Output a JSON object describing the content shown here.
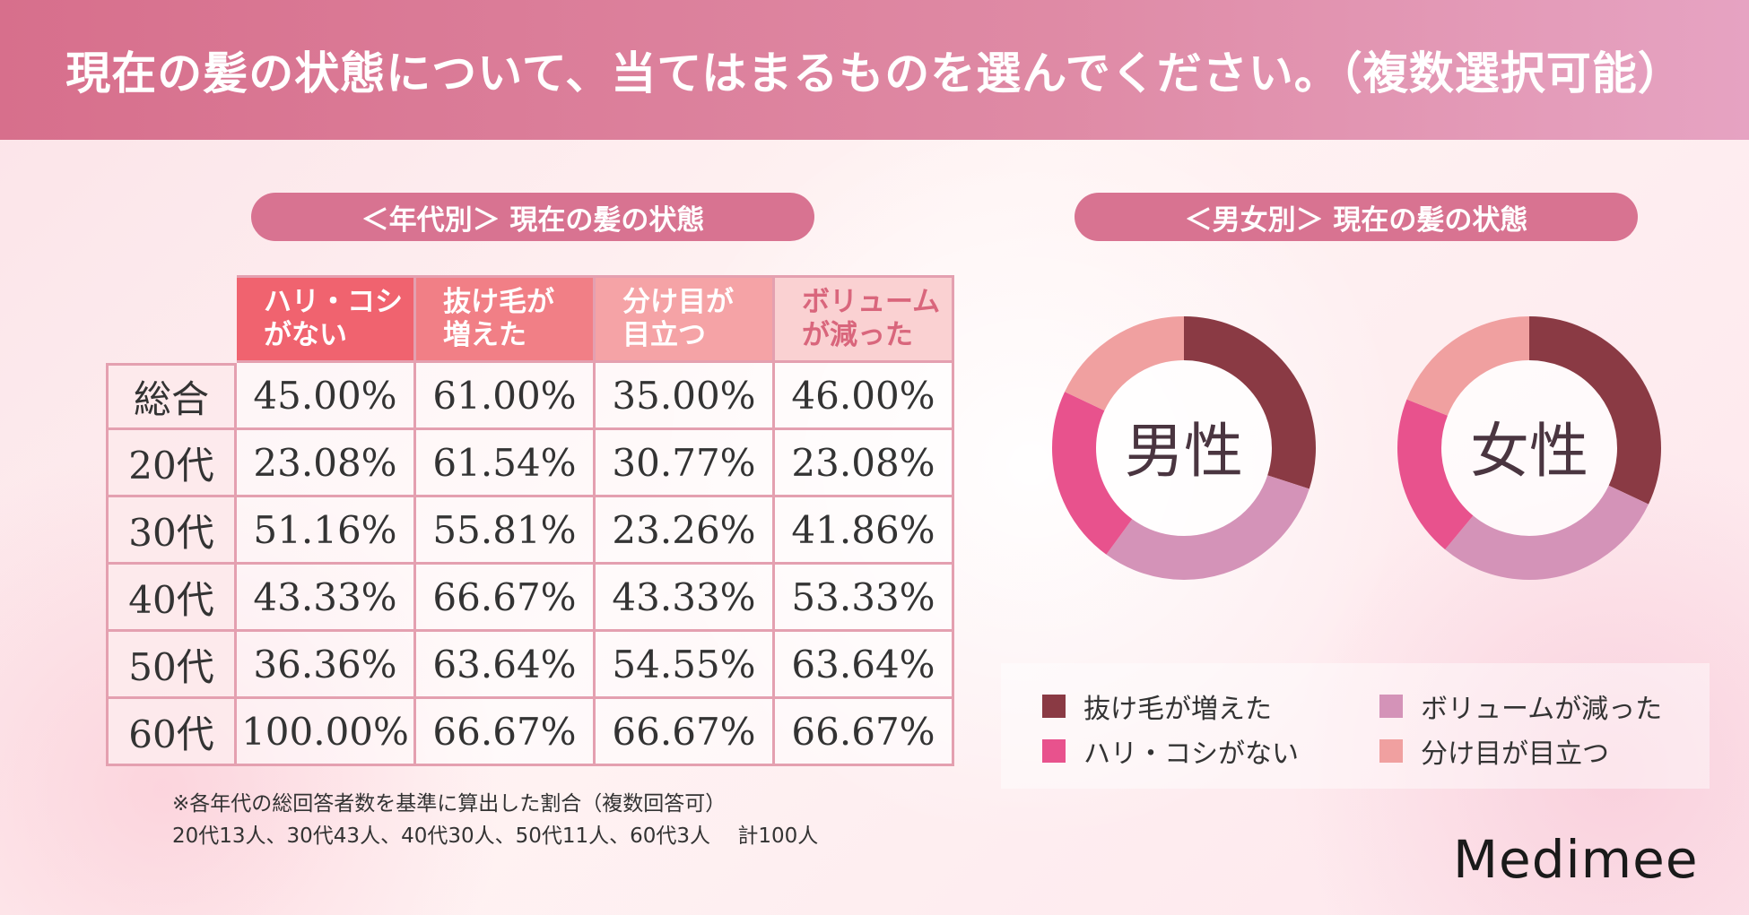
{
  "title": "現在の髪の状態について、当てはまるものを選んでください。（複数選択可能）",
  "age_section": {
    "label": "＜年代別＞ 現在の髪の状態"
  },
  "gender_section": {
    "label": "＜男女別＞ 現在の髪の状態"
  },
  "colors": {
    "header_col_1": "#f0636f",
    "header_col_2": "#f17f86",
    "header_col_3": "#f5a3a6",
    "header_col_4": "#fad1d2",
    "hair_loss": "#8a3a44",
    "no_firmness": "#e8528d",
    "less_volume": "#d493b8",
    "visible_part": "#f0a0a0"
  },
  "chart_data": [
    {
      "type": "table",
      "columns": [
        {
          "line1": "ハリ・コシ",
          "line2": "がない"
        },
        {
          "line1": "抜け毛が",
          "line2": "増えた"
        },
        {
          "line1": "分け目が",
          "line2": "目立つ"
        },
        {
          "line1": "ボリューム",
          "line2": "が減った"
        }
      ],
      "rows": [
        {
          "label": "総合",
          "values": [
            "45.00%",
            "61.00%",
            "35.00%",
            "46.00%"
          ]
        },
        {
          "label": "20代",
          "values": [
            "23.08%",
            "61.54%",
            "30.77%",
            "23.08%"
          ]
        },
        {
          "label": "30代",
          "values": [
            "51.16%",
            "55.81%",
            "23.26%",
            "41.86%"
          ]
        },
        {
          "label": "40代",
          "values": [
            "43.33%",
            "66.67%",
            "43.33%",
            "53.33%"
          ]
        },
        {
          "label": "50代",
          "values": [
            "36.36%",
            "63.64%",
            "54.55%",
            "63.64%"
          ]
        },
        {
          "label": "60代",
          "values": [
            "100.00%",
            "66.67%",
            "66.67%",
            "66.67%"
          ]
        }
      ]
    },
    {
      "type": "pie",
      "donuts": [
        {
          "center_label": "男性",
          "slices": [
            {
              "name": "抜け毛が増えた",
              "value": 30,
              "color": "#8a3a44"
            },
            {
              "name": "ボリュームが減った",
              "value": 30,
              "color": "#d493b8"
            },
            {
              "name": "ハリ・コシがない",
              "value": 22,
              "color": "#e8528d"
            },
            {
              "name": "分け目が目立つ",
              "value": 18,
              "color": "#f0a0a0"
            }
          ]
        },
        {
          "center_label": "女性",
          "slices": [
            {
              "name": "抜け毛が増えた",
              "value": 32,
              "color": "#8a3a44"
            },
            {
              "name": "ボリュームが減った",
              "value": 29,
              "color": "#d493b8"
            },
            {
              "name": "ハリ・コシがない",
              "value": 20,
              "color": "#e8528d"
            },
            {
              "name": "分け目が目立つ",
              "value": 19,
              "color": "#f0a0a0"
            }
          ]
        }
      ],
      "legend": [
        {
          "label": "抜け毛が増えた",
          "color": "#8a3a44"
        },
        {
          "label": "ボリュームが減った",
          "color": "#d493b8"
        },
        {
          "label": "ハリ・コシがない",
          "color": "#e8528d"
        },
        {
          "label": "分け目が目立つ",
          "color": "#f0a0a0"
        }
      ]
    }
  ],
  "notes": {
    "line1": "※各年代の総回答者数を基準に算出した割合（複数回答可）",
    "line2": "20代13人、30代43人、40代30人、50代11人、60代3人　 計100人"
  },
  "brand": "Medimee"
}
